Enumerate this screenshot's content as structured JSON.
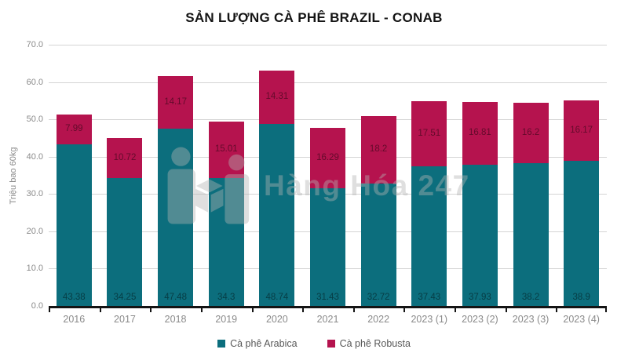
{
  "title": "SẢN LƯỢNG CÀ PHÊ BRAZIL - CONAB",
  "watermark": {
    "text": "Hàng Hóa 247",
    "logo": "people-with-box-icon"
  },
  "colors": {
    "arabica": "#0c6e7d",
    "robusta": "#b5134e",
    "gridline": "#d4d4d4",
    "axis": "#141414",
    "tick_label": "#8a8a8a",
    "legend_text": "#595959",
    "title_text": "#141414",
    "bar_label": "rgba(0,0,0,0.45)"
  },
  "chart_data": {
    "type": "bar",
    "stacked": true,
    "title": "SẢN LƯỢNG CÀ PHÊ BRAZIL - CONAB",
    "ylabel": "Triệu bao 60kg",
    "xlabel": "",
    "ylim": [
      0,
      70
    ],
    "ytick_step": 10,
    "ytick_decimals": 1,
    "grid": true,
    "legend_position": "bottom",
    "categories": [
      "2016",
      "2017",
      "2018",
      "2019",
      "2020",
      "2021",
      "2022",
      "2023 (1)",
      "2023 (2)",
      "2023 (3)",
      "2023 (4)"
    ],
    "series": [
      {
        "name": "Cà phê Arabica",
        "color": "#0c6e7d",
        "values": [
          43.38,
          34.25,
          47.48,
          34.3,
          48.74,
          31.43,
          32.72,
          37.43,
          37.93,
          38.2,
          38.9
        ]
      },
      {
        "name": "Cà phê Robusta",
        "color": "#b5134e",
        "values": [
          7.99,
          10.72,
          14.17,
          15.01,
          14.31,
          16.29,
          18.2,
          17.51,
          16.81,
          16.2,
          16.17
        ]
      }
    ]
  }
}
